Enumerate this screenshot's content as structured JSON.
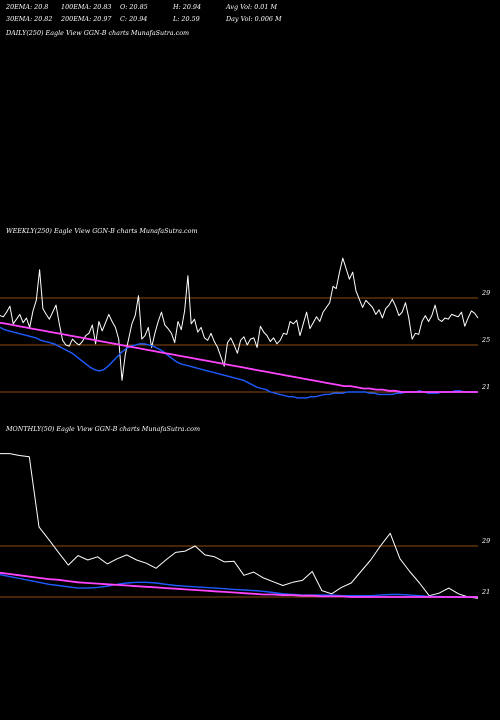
{
  "header": {
    "ema20": "20EMA: 20.8",
    "ema100": "100EMA: 20.83",
    "open": "O: 20.85",
    "high": "H: 20.94",
    "avgvol": "Avg Vol: 0.01  M",
    "ema30": "30EMA: 20.82",
    "ema200": "200EMA: 20.97",
    "close": "C: 20.94",
    "low": "L: 20.59",
    "dayvol": "Day Vol: 0.006  M"
  },
  "colors": {
    "background": "#000000",
    "price": "#ffffff",
    "ema_fast": "#1e5bff",
    "ema_slow": "#ff44ff",
    "ema_mid": "#e6c89a",
    "ema_long": "#c0622a",
    "level_line": "#b8641c",
    "ema_olive": "#8c8c50"
  },
  "chart_data": [
    {
      "type": "line",
      "title": "DAILY(250) Eagle   View  GGN-B charts MunafaSutra.com",
      "series": []
    },
    {
      "type": "line",
      "title": "WEEKLY(250) Eagle   View  GGN-B charts MunafaSutra.com",
      "levels": [
        {
          "value": 29,
          "label": "29"
        },
        {
          "value": 25,
          "label": "25"
        },
        {
          "value": 21,
          "label": "21"
        }
      ],
      "series": [
        {
          "values": [
            27.5,
            27.4,
            27.8,
            28.3,
            26.8,
            27.2,
            27.6,
            26.9,
            27.3,
            26.5,
            27.9,
            28.8,
            31.4,
            28.1,
            27.6,
            27.2,
            27.8,
            28.4,
            26.8,
            25.4,
            25.0,
            24.9,
            25.5,
            25.2,
            25.0,
            25.3,
            25.8,
            26.0,
            26.7,
            25.1,
            27.0,
            26.2,
            26.9,
            27.6,
            27.0,
            26.5,
            25.5,
            22.0,
            24.2,
            25.5,
            26.8,
            27.5,
            29.2,
            25.5,
            25.8,
            26.5,
            24.8,
            26.0,
            27.0,
            27.8,
            26.7,
            26.4,
            26.0,
            25.2,
            27.0,
            26.3,
            27.9,
            30.9,
            26.8,
            27.2,
            26.1,
            26.5,
            25.6,
            25.4,
            26.0,
            25.3,
            24.8,
            24.0,
            23.2,
            25.2,
            25.6,
            25.0,
            24.3,
            25.4,
            25.7,
            25.0,
            25.5,
            25.6,
            24.8,
            26.6,
            26.1,
            25.8,
            25.3,
            25.6,
            25.1,
            25.4,
            26.0,
            25.9,
            27.0,
            26.8,
            27.1,
            25.8,
            26.8,
            27.8,
            26.4,
            26.9,
            27.4,
            27.0,
            27.8,
            28.2,
            28.6,
            30.0,
            29.8,
            31.2,
            32.4,
            31.5,
            30.6,
            31.2,
            29.6,
            28.9,
            28.2,
            28.8,
            28.5,
            28.2,
            27.6,
            28.0,
            27.3,
            28.1,
            28.4,
            28.9,
            28.3,
            27.5,
            27.8,
            28.6,
            27.3,
            25.5,
            26.0,
            25.9,
            27.0,
            27.5,
            27.0,
            27.5,
            28.4,
            27.2,
            27.0,
            27.3,
            27.2,
            27.6,
            27.5,
            27.4,
            27.8,
            26.6,
            27.3,
            27.9,
            27.7,
            27.3
          ]
        },
        {
          "values": [
            26.5,
            26.3,
            26.2,
            26.1,
            26.0,
            25.9,
            25.8,
            25.7,
            25.6,
            25.4,
            25.3,
            25.2,
            25.1,
            24.9,
            24.7,
            24.5,
            24.3,
            24.0,
            23.7,
            23.4,
            23.1,
            22.9,
            22.8,
            22.9,
            23.2,
            23.6,
            24.0,
            24.4,
            24.7,
            24.9,
            25.0,
            25.1,
            25.1,
            25.0,
            24.9,
            24.7,
            24.5,
            24.2,
            23.9,
            23.6,
            23.4,
            23.3,
            23.2,
            23.1,
            23.0,
            22.9,
            22.8,
            22.7,
            22.6,
            22.5,
            22.4,
            22.3,
            22.2,
            22.1,
            22.0,
            21.8,
            21.6,
            21.4,
            21.3,
            21.2,
            21.0,
            20.9,
            20.8,
            20.7,
            20.6,
            20.6,
            20.5,
            20.5,
            20.5,
            20.6,
            20.6,
            20.7,
            20.8,
            20.8,
            20.9,
            20.9,
            20.9,
            21.0,
            21.0,
            21.0,
            21.0,
            21.0,
            20.9,
            20.9,
            20.8,
            20.8,
            20.8,
            20.8,
            20.9,
            20.9,
            21.0,
            21.0,
            21.0,
            21.1,
            21.0,
            20.9,
            20.9,
            20.9,
            21.0,
            21.0,
            21.0,
            21.1,
            21.1,
            21.0,
            21.0,
            21.0,
            21.0
          ]
        },
        {
          "values": [
            26.9,
            26.8,
            26.7,
            26.6,
            26.5,
            26.4,
            26.3,
            26.2,
            26.1,
            26.0,
            25.9,
            25.8,
            25.7,
            25.6,
            25.5,
            25.4,
            25.3,
            25.2,
            25.1,
            25.0,
            24.9,
            24.8,
            24.7,
            24.6,
            24.5,
            24.4,
            24.3,
            24.2,
            24.1,
            24.0,
            23.9,
            23.8,
            23.7,
            23.6,
            23.5,
            23.4,
            23.3,
            23.2,
            23.1,
            23.0,
            22.9,
            22.8,
            22.7,
            22.6,
            22.5,
            22.4,
            22.3,
            22.2,
            22.1,
            22.0,
            21.9,
            21.8,
            21.7,
            21.6,
            21.5,
            21.5,
            21.4,
            21.3,
            21.3,
            21.2,
            21.2,
            21.1,
            21.1,
            21.0,
            21.0,
            21.0,
            21.0,
            21.0,
            21.0,
            21.0,
            21.0,
            21.0,
            21.0,
            21.0,
            21.0,
            21.0
          ]
        }
      ]
    },
    {
      "type": "line",
      "title": "MONTHLY(50) Eagle   View  GGN-B charts MunafaSutra.com",
      "levels": [
        {
          "value": 29,
          "label": "29"
        },
        {
          "value": 21,
          "label": "21"
        }
      ],
      "series": [
        {
          "values": [
            43.5,
            43.5,
            43.2,
            43.0,
            32.0,
            30.0,
            28.0,
            26.0,
            27.5,
            26.8,
            27.3,
            26.2,
            27.0,
            27.6,
            26.8,
            26.3,
            25.5,
            26.8,
            28.0,
            28.2,
            29.0,
            27.6,
            27.3,
            26.5,
            26.6,
            24.4,
            24.9,
            24.0,
            23.4,
            22.8,
            23.3,
            23.6,
            25.0,
            22.0,
            21.5,
            22.5,
            23.2,
            25.0,
            26.8,
            29.0,
            31.0,
            27.0,
            25.0,
            23.2,
            21.2,
            21.6,
            22.4,
            21.5,
            21.0,
            20.8
          ]
        },
        {
          "values": [
            24.5,
            24.2,
            23.9,
            23.6,
            23.3,
            23.0,
            22.8,
            22.6,
            22.4,
            22.4,
            22.5,
            22.7,
            23.0,
            23.2,
            23.3,
            23.3,
            23.2,
            23.0,
            22.8,
            22.7,
            22.6,
            22.5,
            22.4,
            22.3,
            22.2,
            22.1,
            22.0,
            21.9,
            21.7,
            21.5,
            21.4,
            21.3,
            21.3,
            21.3,
            21.3,
            21.2,
            21.2,
            21.2,
            21.2,
            21.3,
            21.4,
            21.4,
            21.3,
            21.2,
            21.1,
            21.1,
            21.0,
            21.0,
            21.0,
            21.0
          ]
        },
        {
          "values": [
            24.8,
            24.6,
            24.4,
            24.2,
            24.0,
            23.8,
            23.7,
            23.5,
            23.3,
            23.2,
            23.1,
            23.0,
            22.9,
            22.8,
            22.7,
            22.6,
            22.5,
            22.4,
            22.3,
            22.2,
            22.1,
            22.0,
            21.9,
            21.8,
            21.7,
            21.6,
            21.5,
            21.4,
            21.4,
            21.3,
            21.3,
            21.2,
            21.2,
            21.1,
            21.1,
            21.1,
            21.0,
            21.0,
            21.0,
            21.0,
            21.0,
            21.0,
            21.0,
            21.0,
            21.0,
            21.0,
            21.0,
            21.0,
            21.0,
            21.0
          ]
        }
      ]
    }
  ]
}
